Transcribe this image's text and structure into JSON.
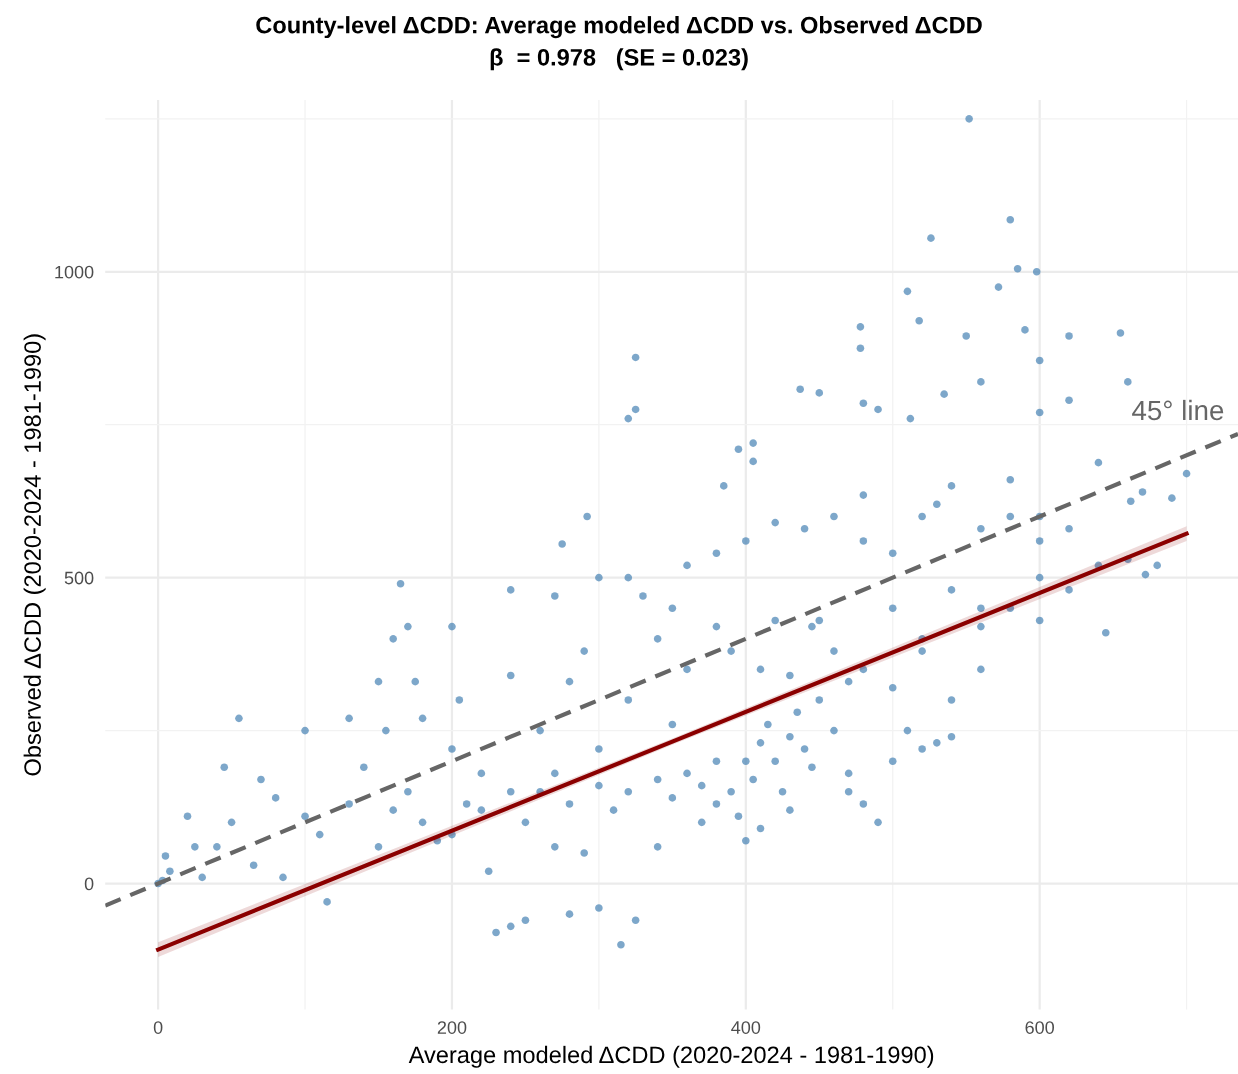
{
  "chart_data": {
    "type": "scatter",
    "title": "County-level ΔCDD: Average modeled ΔCDD vs. Observed ΔCDD",
    "subtitle": "β  = 0.978   (SE = 0.023)",
    "xlabel": "Average modeled ΔCDD (2020-2024 - 1981-1990)",
    "ylabel": "Observed ΔCDD (2020-2024 - 1981-1990)",
    "xlim": [
      -36,
      735
    ],
    "ylim": [
      -206,
      1281
    ],
    "xticks": [
      0,
      200,
      400,
      600
    ],
    "yticks": [
      0,
      500,
      1000
    ],
    "grid": true,
    "annotations": [
      "45° line"
    ],
    "series": [
      {
        "color": "#4682b4",
        "marker": "circle",
        "x": [
          552,
          580,
          526,
          585,
          598,
          572,
          510,
          518,
          478,
          550,
          590,
          620,
          655,
          600,
          478,
          437,
          450,
          535,
          325,
          325,
          320,
          560,
          660,
          620,
          480,
          490,
          600,
          512,
          395,
          405,
          405,
          385,
          480,
          640,
          670,
          700,
          662,
          690,
          600,
          530,
          580,
          275,
          292,
          165,
          170,
          160,
          200,
          240,
          270,
          330,
          300,
          320,
          360,
          380,
          400,
          420,
          440,
          460,
          480,
          500,
          520,
          540,
          560,
          580,
          600,
          620,
          640,
          660,
          680,
          645,
          672,
          350,
          380,
          420,
          450,
          500,
          540,
          560,
          580,
          600,
          0,
          3,
          5,
          8,
          20,
          25,
          30,
          40,
          50,
          55,
          45,
          65,
          70,
          80,
          85,
          100,
          100,
          110,
          115,
          130,
          130,
          140,
          150,
          155,
          160,
          170,
          175,
          180,
          190,
          200,
          205,
          210,
          220,
          225,
          230,
          240,
          250,
          240,
          260,
          270,
          280,
          290,
          300,
          310,
          320,
          340,
          350,
          360,
          300,
          315,
          325,
          280,
          260,
          280,
          300,
          320,
          340,
          350,
          360,
          370,
          380,
          380,
          390,
          395,
          400,
          405,
          410,
          415,
          420,
          425,
          430,
          435,
          440,
          445,
          430,
          410,
          400,
          370,
          340,
          290,
          270,
          250,
          240,
          220,
          200,
          180,
          150,
          460,
          470,
          480,
          490,
          500,
          510,
          520,
          530,
          540,
          500,
          470,
          460,
          480,
          450,
          520,
          520,
          560,
          600,
          620,
          560,
          540,
          470,
          430,
          410,
          390,
          445
        ],
        "values": [
          1250,
          1085,
          1055,
          1005,
          1000,
          975,
          968,
          920,
          910,
          895,
          905,
          895,
          900,
          855,
          875,
          808,
          802,
          800,
          860,
          775,
          760,
          820,
          820,
          790,
          785,
          775,
          770,
          760,
          710,
          720,
          690,
          650,
          635,
          688,
          640,
          670,
          625,
          630,
          600,
          620,
          660,
          555,
          600,
          490,
          420,
          400,
          420,
          480,
          470,
          470,
          500,
          500,
          520,
          540,
          560,
          590,
          580,
          600,
          560,
          540,
          600,
          650,
          580,
          600,
          560,
          580,
          520,
          530,
          520,
          410,
          505,
          450,
          420,
          430,
          430,
          450,
          480,
          450,
          450,
          500,
          0,
          5,
          45,
          20,
          110,
          60,
          10,
          60,
          100,
          270,
          190,
          30,
          170,
          140,
          10,
          110,
          250,
          80,
          -30,
          130,
          270,
          190,
          330,
          250,
          120,
          150,
          330,
          270,
          70,
          220,
          300,
          130,
          180,
          20,
          -80,
          -70,
          -60,
          340,
          250,
          180,
          330,
          380,
          220,
          120,
          300,
          400,
          260,
          350,
          -40,
          -100,
          -60,
          -50,
          150,
          130,
          160,
          150,
          170,
          140,
          180,
          160,
          130,
          200,
          150,
          110,
          200,
          170,
          230,
          260,
          200,
          150,
          240,
          280,
          220,
          190,
          120,
          90,
          70,
          100,
          60,
          50,
          60,
          100,
          150,
          120,
          80,
          100,
          60,
          250,
          150,
          130,
          100,
          200,
          250,
          220,
          230,
          300,
          320,
          330,
          380,
          350,
          300,
          380,
          400,
          420,
          430,
          480,
          350,
          240,
          180,
          340,
          350,
          380,
          420
        ]
      },
      {
        "type": "line",
        "color": "#8b0000",
        "line_style": "solid",
        "x": [
          0,
          350,
          700
        ],
        "values": [
          -108,
          232,
          572
        ],
        "lower": [
          -120,
          227,
          560
        ],
        "upper": [
          -96,
          237,
          584
        ]
      },
      {
        "type": "line",
        "color": "#666666",
        "line_style": "dashed",
        "x": [
          -36,
          735
        ],
        "values": [
          -36,
          735
        ]
      }
    ]
  }
}
